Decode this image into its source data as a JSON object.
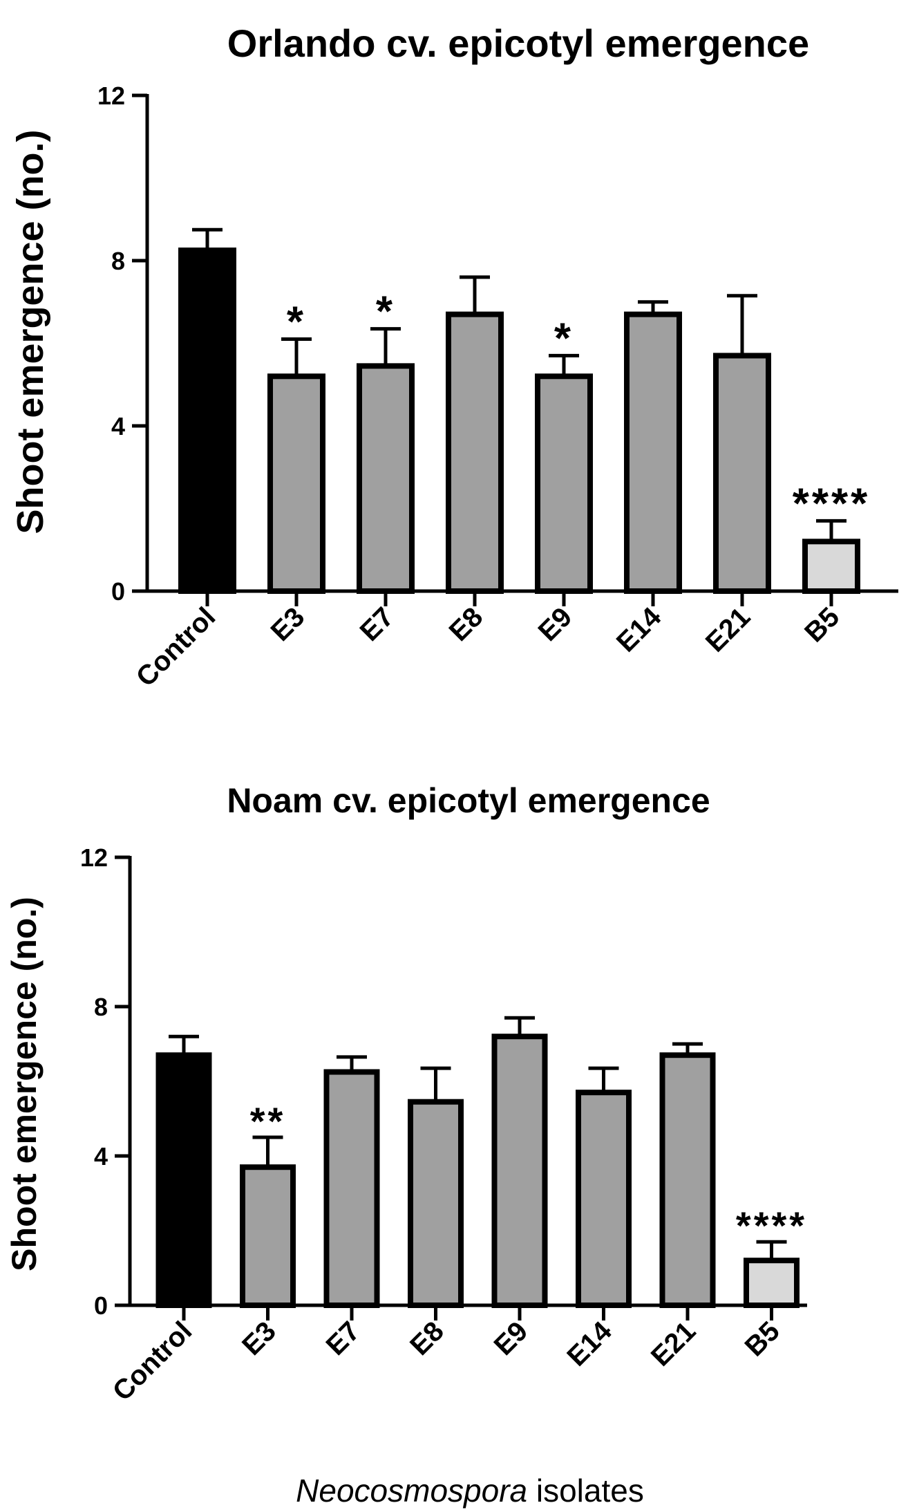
{
  "chart_data": [
    {
      "type": "bar",
      "title": "Orlando cv. epicotyl emergence",
      "ylabel": "Shoot emergence (no.)",
      "xlabel": "",
      "ylim": [
        0,
        12
      ],
      "yticks": [
        0,
        4,
        8,
        12
      ],
      "categories": [
        "Control",
        "E3",
        "E7",
        "E8",
        "E9",
        "E14",
        "E21",
        "B5"
      ],
      "values": [
        8.25,
        5.2,
        5.45,
        6.7,
        5.2,
        6.7,
        5.7,
        1.2
      ],
      "errors": [
        0.5,
        0.9,
        0.9,
        0.9,
        0.5,
        0.3,
        1.45,
        0.5
      ],
      "significance": [
        "",
        "*",
        "*",
        "",
        "*",
        "",
        "",
        "****"
      ],
      "colors": [
        "#000000",
        "#a0a0a0",
        "#a0a0a0",
        "#a0a0a0",
        "#a0a0a0",
        "#a0a0a0",
        "#a0a0a0",
        "#d9d9d9"
      ]
    },
    {
      "type": "bar",
      "title": "Noam cv. epicotyl emergence",
      "ylabel": "Shoot emergence (no.)",
      "xlabel": "",
      "ylim": [
        0,
        12
      ],
      "yticks": [
        0,
        4,
        8,
        12
      ],
      "categories": [
        "Control",
        "E3",
        "E7",
        "E8",
        "E9",
        "E14",
        "E21",
        "B5"
      ],
      "values": [
        6.7,
        3.7,
        6.25,
        5.45,
        7.2,
        5.7,
        6.7,
        1.2
      ],
      "errors": [
        0.5,
        0.8,
        0.4,
        0.9,
        0.5,
        0.65,
        0.3,
        0.5
      ],
      "significance": [
        "",
        "**",
        "",
        "",
        "",
        "",
        "",
        "****"
      ],
      "colors": [
        "#000000",
        "#a0a0a0",
        "#a0a0a0",
        "#a0a0a0",
        "#a0a0a0",
        "#a0a0a0",
        "#a0a0a0",
        "#d9d9d9"
      ]
    }
  ],
  "footer": {
    "genus": "Neocosmospora",
    "suffix": " isolates"
  }
}
